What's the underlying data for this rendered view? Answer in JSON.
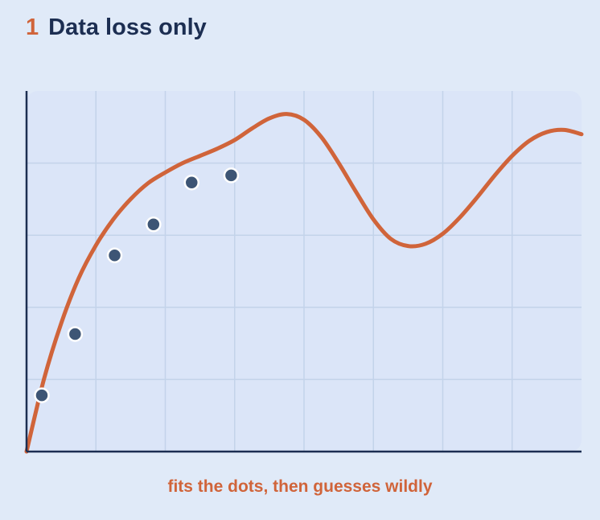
{
  "header": {
    "number": "1",
    "title": "Data loss only"
  },
  "caption": "fits the dots, then guesses wildly",
  "colors": {
    "background": "#e0eaf8",
    "plot_area": "#dbe5f8",
    "grid": "#c3d3ea",
    "axis": "#1c2e52",
    "curve": "#d0643a",
    "dots": "#3d5575",
    "title_number": "#d0643a",
    "title_text": "#1c2e52",
    "caption": "#d0643a"
  },
  "chart_data": {
    "type": "line",
    "title": "",
    "xlabel": "",
    "ylabel": "",
    "xlim": [
      0,
      8
    ],
    "ylim": [
      0,
      5
    ],
    "grid": true,
    "series": [
      {
        "type": "line",
        "x": [
          0,
          0.25,
          0.5,
          0.75,
          1,
          1.25,
          1.5,
          1.75,
          2,
          2.25,
          2.5,
          2.75,
          3,
          3.25,
          3.5,
          3.75,
          4,
          4.25,
          4.5,
          4.75,
          5,
          5.25,
          5.5,
          5.75,
          6,
          6.25,
          6.5,
          6.75,
          7,
          7.25,
          7.5,
          7.75,
          8
        ],
        "y": [
          0,
          1,
          1.78,
          2.4,
          2.86,
          3.22,
          3.5,
          3.72,
          3.87,
          4.0,
          4.1,
          4.2,
          4.32,
          4.48,
          4.62,
          4.68,
          4.6,
          4.36,
          4.0,
          3.6,
          3.22,
          2.95,
          2.85,
          2.88,
          3.02,
          3.25,
          3.53,
          3.83,
          4.1,
          4.31,
          4.43,
          4.46,
          4.4
        ]
      },
      {
        "type": "scatter",
        "x": [
          0.22,
          0.7,
          1.27,
          1.83,
          2.38,
          2.95
        ],
        "y": [
          0.78,
          1.63,
          2.72,
          3.15,
          3.73,
          3.83
        ]
      }
    ]
  }
}
